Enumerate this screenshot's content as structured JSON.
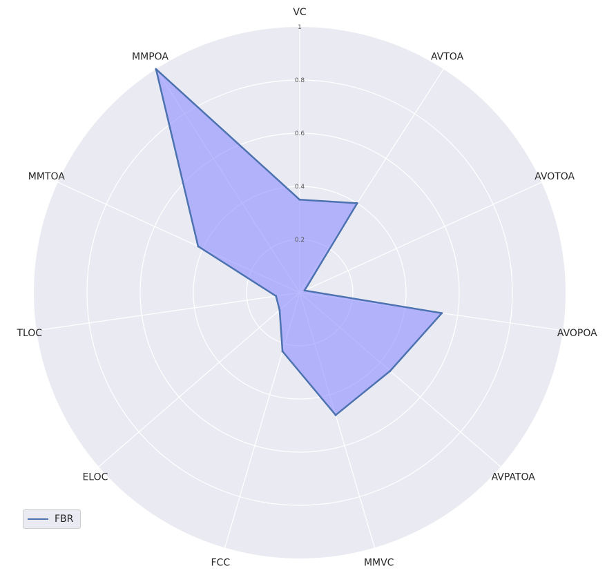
{
  "chart_data": {
    "type": "radar",
    "categories": [
      "VC",
      "AVTOA",
      "AVOTOA",
      "AVOPOA",
      "AVPATOA",
      "MMVC",
      "FCC",
      "ELOC",
      "TLOC",
      "MMTOA",
      "MMPOA"
    ],
    "series": [
      {
        "name": "FBR",
        "values": [
          0.35,
          0.4,
          0.02,
          0.54,
          0.45,
          0.48,
          0.23,
          0.1,
          0.09,
          0.42,
          1.0
        ],
        "color": "#4c72b0",
        "fill": "#8c8cff"
      }
    ],
    "rlim": [
      0,
      1
    ],
    "rticks": [
      0.2,
      0.4,
      0.6,
      0.8,
      1
    ],
    "rtick_labels": [
      "0.2",
      "0.4",
      "0.6",
      "0.8",
      "1"
    ],
    "grid": true,
    "legend_position": "lower-left",
    "background": "#eaeaf2",
    "grid_color": "#ffffff"
  }
}
